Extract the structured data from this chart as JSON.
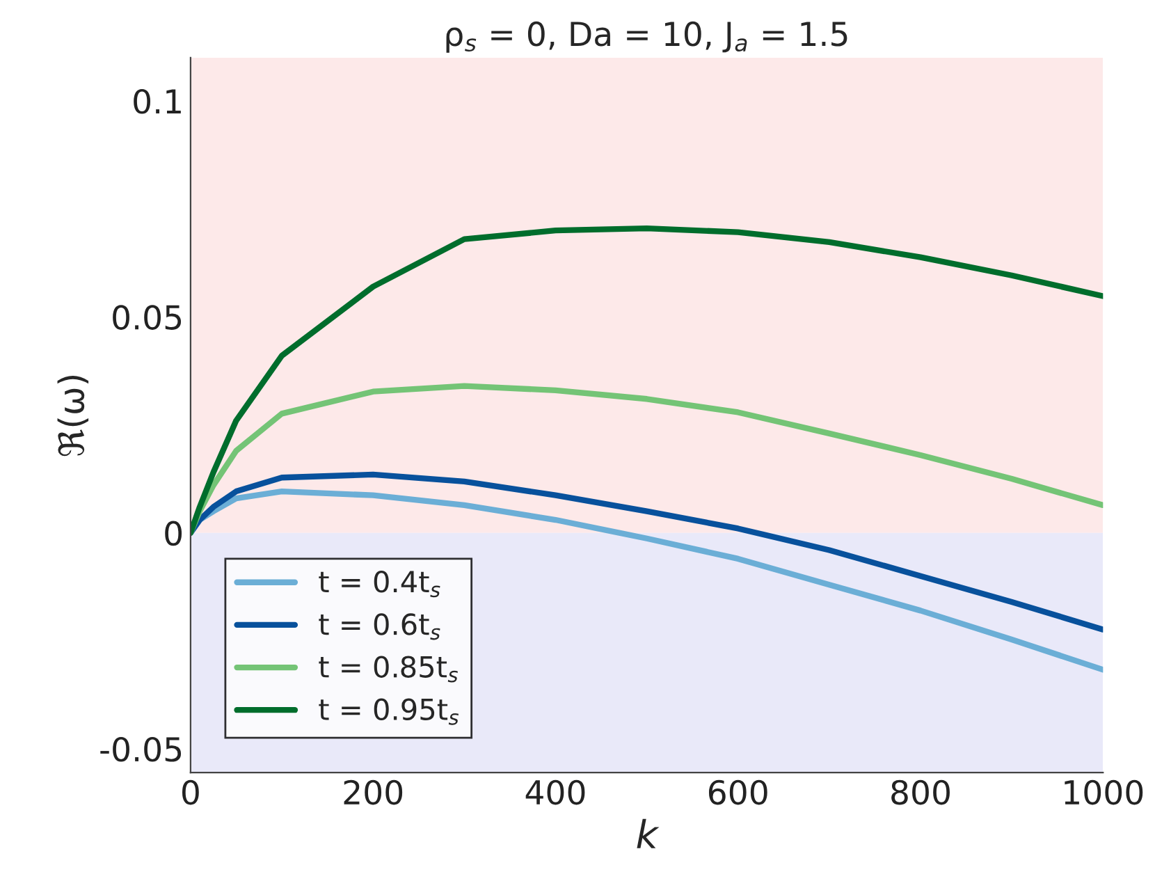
{
  "chart_data": {
    "type": "line",
    "title": "ρ$_{s}$ = 0, Da = 10, J$_{a}$ = 1.5",
    "xlabel": "k",
    "ylabel": "ℜ(ω)",
    "x": [
      0,
      10,
      25,
      50,
      100,
      200,
      300,
      400,
      500,
      600,
      700,
      800,
      900,
      1000
    ],
    "series": [
      {
        "name": "t = 0.4t$_{s}$",
        "color": "#6baed6",
        "values": [
          0,
          0.003,
          0.005,
          0.008,
          0.0096,
          0.0087,
          0.0064,
          0.003,
          -0.0013,
          -0.006,
          -0.012,
          -0.018,
          -0.0247,
          -0.0317
        ]
      },
      {
        "name": "t = 0.6t$_{s}$",
        "color": "#08519c",
        "values": [
          0,
          0.003,
          0.006,
          0.0096,
          0.0128,
          0.0135,
          0.0119,
          0.0087,
          0.005,
          0.001,
          -0.004,
          -0.01,
          -0.016,
          -0.0224
        ]
      },
      {
        "name": "t = 0.85t$_{s}$",
        "color": "#74c476",
        "values": [
          0,
          0.005,
          0.011,
          0.019,
          0.0276,
          0.0327,
          0.034,
          0.033,
          0.031,
          0.0279,
          0.023,
          0.018,
          0.0125,
          0.0064
        ]
      },
      {
        "name": "t = 0.95t$_{s}$",
        "color": "#006d2c",
        "values": [
          0,
          0.006,
          0.014,
          0.026,
          0.041,
          0.057,
          0.068,
          0.07,
          0.0705,
          0.0696,
          0.0673,
          0.0638,
          0.0596,
          0.0548
        ]
      }
    ],
    "xlim": [
      0,
      1000
    ],
    "xticks": [
      0,
      200,
      400,
      600,
      800,
      1000
    ],
    "ylim": [
      -0.0555,
      0.11
    ],
    "yticks": [
      -0.05,
      0,
      0.05,
      0.1
    ],
    "bands": [
      {
        "axis": "y",
        "from": 0,
        "to": 0.11,
        "color": "#fde9e9"
      },
      {
        "axis": "y",
        "from": -0.0555,
        "to": 0,
        "color": "#e9e9f9"
      }
    ],
    "legend": "bottom left",
    "grid": false,
    "line_style": "solid",
    "marker": "none"
  }
}
